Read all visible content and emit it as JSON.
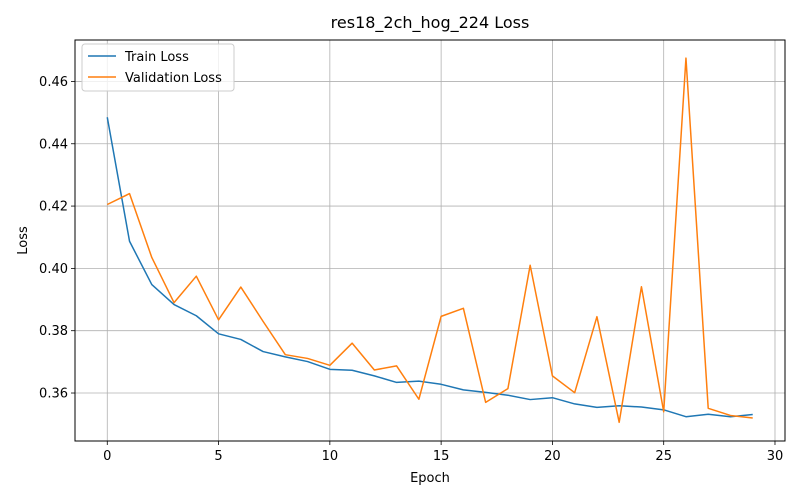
{
  "chart_data": {
    "type": "line",
    "title": "res18_2ch_hog_224 Loss",
    "xlabel": "Epoch",
    "ylabel": "Loss",
    "xlim": [
      -1.45,
      30.45
    ],
    "ylim": [
      0.3446,
      0.4733
    ],
    "xticks": [
      0,
      5,
      10,
      15,
      20,
      25,
      30
    ],
    "yticks": [
      0.36,
      0.38,
      0.4,
      0.42,
      0.44,
      0.46
    ],
    "xtick_labels": [
      "0",
      "5",
      "10",
      "15",
      "20",
      "25",
      "30"
    ],
    "ytick_labels": [
      "0.36",
      "0.38",
      "0.40",
      "0.42",
      "0.44",
      "0.46"
    ],
    "grid": true,
    "legend_position": "upper-left",
    "x": [
      0,
      1,
      2,
      3,
      4,
      5,
      6,
      7,
      8,
      9,
      10,
      11,
      12,
      13,
      14,
      15,
      16,
      17,
      18,
      19,
      20,
      21,
      22,
      23,
      24,
      25,
      26,
      27,
      28,
      29
    ],
    "series": [
      {
        "name": "Train Loss",
        "color": "#1f77b4",
        "values": [
          0.4485,
          0.4087,
          0.3948,
          0.3884,
          0.3848,
          0.379,
          0.3772,
          0.3733,
          0.3716,
          0.3701,
          0.3676,
          0.3673,
          0.3655,
          0.3634,
          0.3638,
          0.3628,
          0.361,
          0.3602,
          0.3593,
          0.3579,
          0.3585,
          0.3565,
          0.3554,
          0.3559,
          0.3555,
          0.3546,
          0.3524,
          0.3532,
          0.3524,
          0.3531
        ]
      },
      {
        "name": "Validation Loss",
        "color": "#ff7f0e",
        "values": [
          0.4205,
          0.424,
          0.4035,
          0.389,
          0.3975,
          0.3835,
          0.394,
          0.383,
          0.3723,
          0.3711,
          0.3689,
          0.376,
          0.3674,
          0.3687,
          0.358,
          0.3846,
          0.3872,
          0.357,
          0.3614,
          0.401,
          0.3655,
          0.3601,
          0.3845,
          0.3506,
          0.3941,
          0.354,
          0.4675,
          0.3551,
          0.3528,
          0.352
        ]
      }
    ]
  }
}
